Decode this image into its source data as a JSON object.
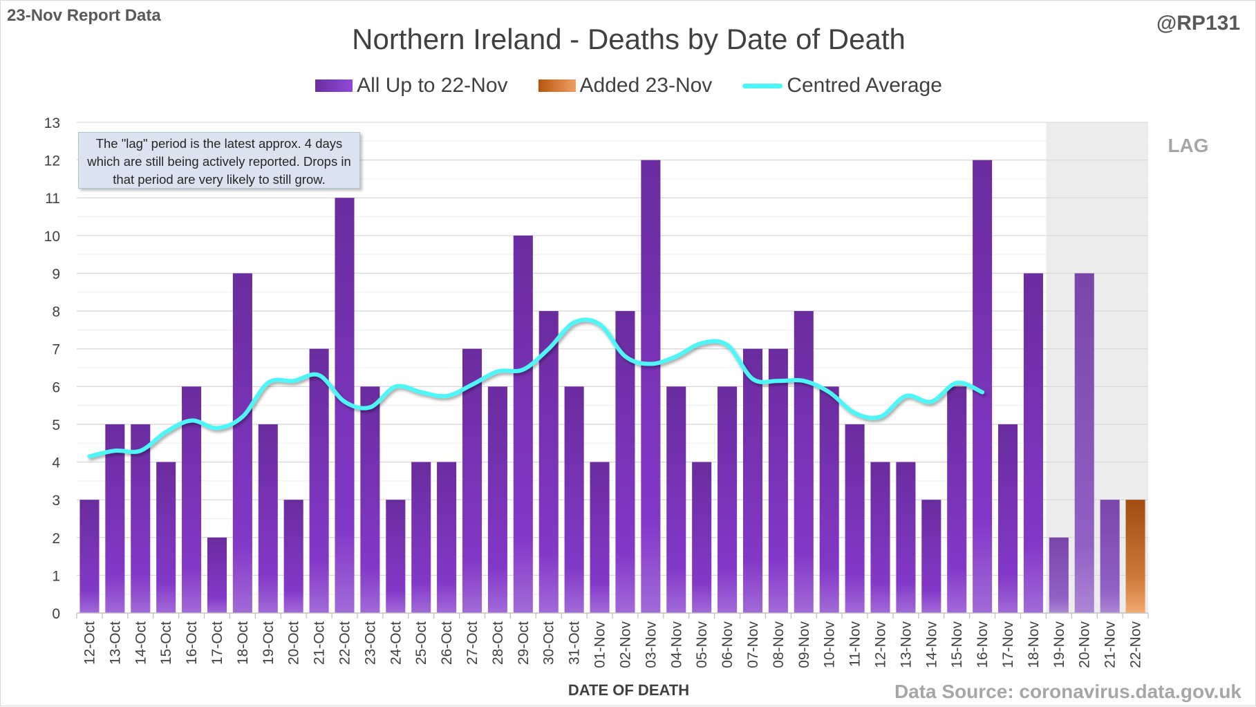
{
  "report_label": "23-Nov Report Data",
  "handle": "@RP131",
  "note": "The \"lag\" period is the latest approx. 4 days which are still being actively reported.  Drops in that period are very likely to still grow.",
  "lag_label": "LAG",
  "source": "Data Source: coronavirus.data.gov.uk",
  "colors": {
    "purple": "#7030a0",
    "orange": "#c55a11",
    "line": "#4ff6f8",
    "lag_shade": "#ececec"
  },
  "chart_data": {
    "type": "bar",
    "title": "Northern Ireland - Deaths by Date of Death",
    "xlabel": "DATE OF DEATH",
    "ylabel": "",
    "ylim": [
      0,
      13
    ],
    "yticks": [
      0,
      1,
      2,
      3,
      4,
      5,
      6,
      7,
      8,
      9,
      10,
      11,
      12,
      13
    ],
    "grid": true,
    "legend_position": "top",
    "categories": [
      "12-Oct",
      "13-Oct",
      "14-Oct",
      "15-Oct",
      "16-Oct",
      "17-Oct",
      "18-Oct",
      "19-Oct",
      "20-Oct",
      "21-Oct",
      "22-Oct",
      "23-Oct",
      "24-Oct",
      "25-Oct",
      "26-Oct",
      "27-Oct",
      "28-Oct",
      "29-Oct",
      "30-Oct",
      "31-Oct",
      "01-Nov",
      "02-Nov",
      "03-Nov",
      "04-Nov",
      "05-Nov",
      "06-Nov",
      "07-Nov",
      "08-Nov",
      "09-Nov",
      "10-Nov",
      "11-Nov",
      "12-Nov",
      "13-Nov",
      "14-Nov",
      "15-Nov",
      "16-Nov",
      "17-Nov",
      "18-Nov",
      "19-Nov",
      "20-Nov",
      "21-Nov",
      "22-Nov"
    ],
    "lag_categories": [
      "19-Nov",
      "20-Nov",
      "21-Nov",
      "22-Nov"
    ],
    "series": [
      {
        "name": "All Up to 22-Nov",
        "kind": "bar",
        "color": "#7030a0",
        "values": [
          3,
          5,
          5,
          4,
          6,
          2,
          9,
          5,
          3,
          7,
          11,
          6,
          3,
          4,
          4,
          7,
          6,
          10,
          8,
          6,
          4,
          8,
          12,
          6,
          4,
          6,
          7,
          7,
          8,
          6,
          5,
          4,
          4,
          3,
          6,
          12,
          5,
          9,
          2,
          9,
          3,
          0
        ]
      },
      {
        "name": "Added 23-Nov",
        "kind": "bar",
        "color": "#c55a11",
        "values": [
          0,
          0,
          0,
          0,
          0,
          0,
          0,
          0,
          0,
          0,
          0,
          0,
          0,
          0,
          0,
          0,
          0,
          0,
          0,
          0,
          0,
          0,
          0,
          0,
          0,
          0,
          0,
          0,
          0,
          0,
          0,
          0,
          0,
          0,
          0,
          0,
          0,
          0,
          0,
          0,
          0,
          3
        ]
      },
      {
        "name": "Centred Average",
        "kind": "line",
        "color": "#4ff6f8",
        "values": [
          4.15,
          4.3,
          4.3,
          4.8,
          5.1,
          4.9,
          5.2,
          6.1,
          6.15,
          6.3,
          5.6,
          5.45,
          6.0,
          5.85,
          5.75,
          6.05,
          6.4,
          6.45,
          7.0,
          7.7,
          7.65,
          6.8,
          6.6,
          6.8,
          7.15,
          7.1,
          6.2,
          6.15,
          6.15,
          5.85,
          5.3,
          5.2,
          5.75,
          5.6,
          6.1,
          5.85,
          null,
          null,
          null,
          null,
          null,
          null
        ]
      }
    ]
  }
}
